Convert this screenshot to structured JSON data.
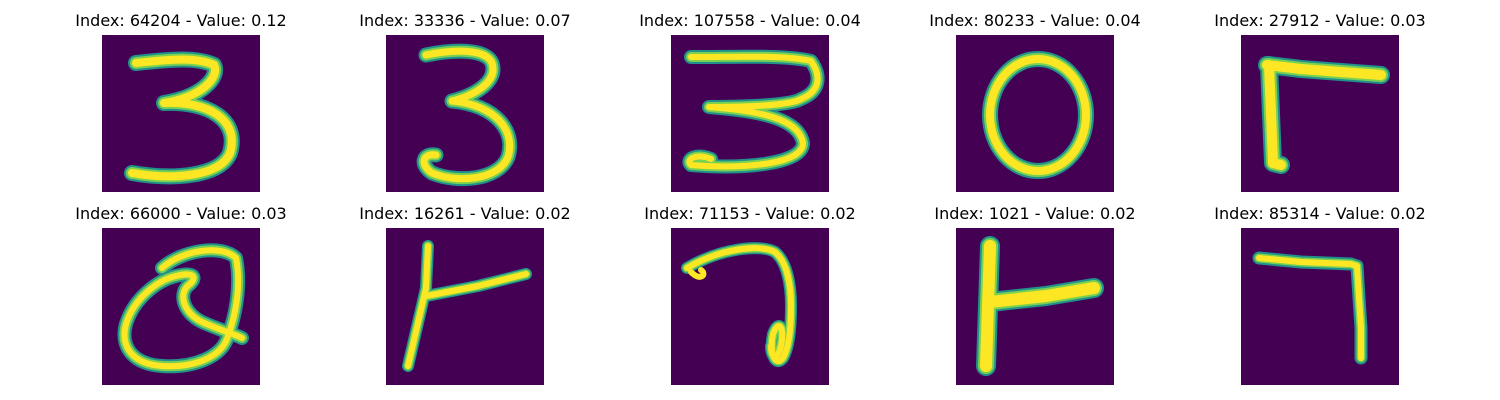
{
  "panels": [
    {
      "caption": "Index: 64204 - Value: 0.12",
      "digit": "3",
      "index": 64204,
      "value": 0.12
    },
    {
      "caption": "Index: 33336 - Value: 0.07",
      "digit": "3",
      "index": 33336,
      "value": 0.07
    },
    {
      "caption": "Index: 107558 - Value: 0.04",
      "digit": "3",
      "index": 107558,
      "value": 0.04
    },
    {
      "caption": "Index: 80233 - Value: 0.04",
      "digit": "0",
      "index": 80233,
      "value": 0.04
    },
    {
      "caption": "Index: 27912 - Value: 0.03",
      "digit": "7",
      "index": 27912,
      "value": 0.03
    },
    {
      "caption": "Index: 66000 - Value: 0.03",
      "digit": "Q",
      "index": 66000,
      "value": 0.03
    },
    {
      "caption": "Index: 16261 - Value: 0.02",
      "digit": "1",
      "index": 16261,
      "value": 0.02
    },
    {
      "caption": "Index: 71153 - Value: 0.02",
      "digit": "7",
      "index": 71153,
      "value": 0.02
    },
    {
      "caption": "Index: 1021 - Value: 0.02",
      "digit": "1",
      "index": 1021,
      "value": 0.02
    },
    {
      "caption": "Index: 85314 - Value: 0.02",
      "digit": "7",
      "index": 85314,
      "value": 0.02
    }
  ],
  "colors": {
    "background": "#440154",
    "edge": "#21918c",
    "mid": "#7ad151",
    "core": "#fde725"
  }
}
